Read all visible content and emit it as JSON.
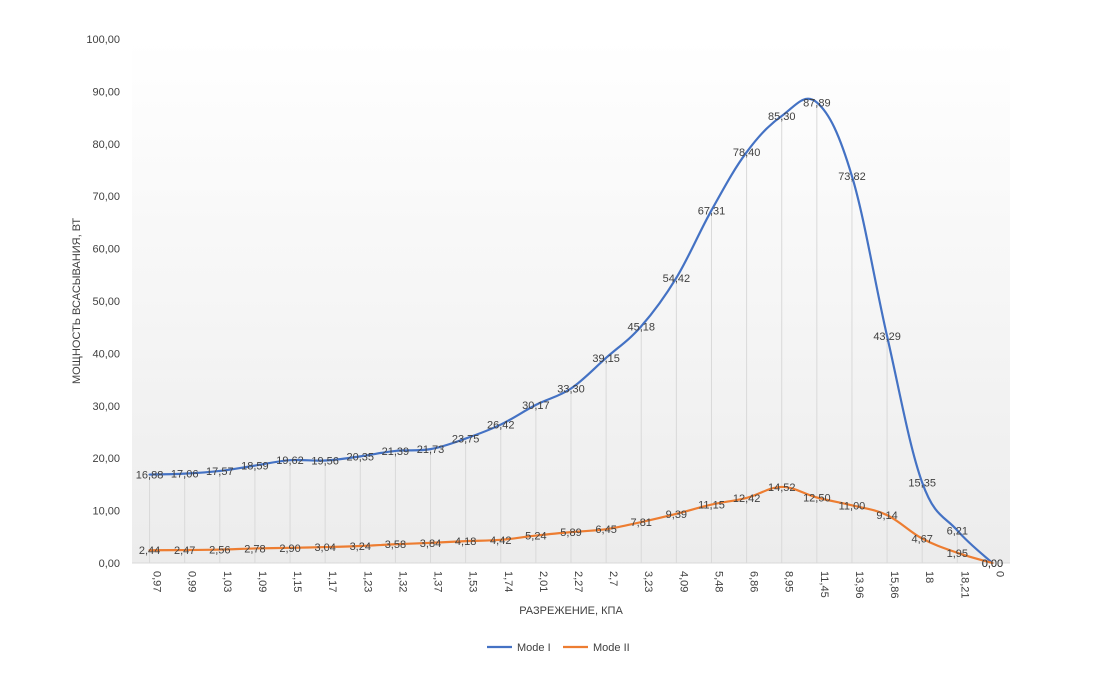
{
  "chart_data": {
    "type": "line",
    "title": "",
    "xlabel": "РАЗРЕЖЕНИЕ, КПА",
    "ylabel": "МОЩНОСТЬ ВСАСЫВАНИЯ, ВТ",
    "ylim": [
      0,
      100
    ],
    "y_ticks": [
      "0,00",
      "10,00",
      "20,00",
      "30,00",
      "40,00",
      "50,00",
      "60,00",
      "70,00",
      "80,00",
      "90,00",
      "100,00"
    ],
    "categories": [
      "0,97",
      "0,99",
      "1,03",
      "1,09",
      "1,15",
      "1,17",
      "1,23",
      "1,32",
      "1,37",
      "1,53",
      "1,74",
      "2,01",
      "2,27",
      "2,7",
      "3,23",
      "4,09",
      "5,48",
      "6,86",
      "8,95",
      "11,45",
      "13,96",
      "15,86",
      "18",
      "18,21",
      "0"
    ],
    "series": [
      {
        "name": "Mode I",
        "color": "#4472C4",
        "values": [
          16.88,
          17.06,
          17.57,
          18.59,
          19.62,
          19.56,
          20.35,
          21.39,
          21.73,
          23.75,
          26.42,
          30.17,
          33.3,
          39.15,
          45.18,
          54.42,
          67.31,
          78.4,
          85.3,
          87.89,
          73.82,
          43.29,
          15.35,
          6.21,
          0.0
        ],
        "labels": [
          "16,88",
          "17,06",
          "17,57",
          "18,59",
          "19,62",
          "19,56",
          "20,35",
          "21,39",
          "21,73",
          "23,75",
          "26,42",
          "30,17",
          "33,30",
          "39,15",
          "45,18",
          "54,42",
          "67,31",
          "78,40",
          "85,30",
          "87,89",
          "73,82",
          "43,29",
          "15,35",
          "6,21",
          "0,00"
        ]
      },
      {
        "name": "Mode II",
        "color": "#ED7D31",
        "values": [
          2.44,
          2.47,
          2.56,
          2.78,
          2.9,
          3.04,
          3.24,
          3.58,
          3.84,
          4.18,
          4.42,
          5.24,
          5.89,
          6.45,
          7.81,
          9.39,
          11.15,
          12.42,
          14.52,
          12.5,
          11.0,
          9.14,
          4.67,
          1.95,
          0.0
        ],
        "labels": [
          "2,44",
          "2,47",
          "2,56",
          "2,78",
          "2,90",
          "3,04",
          "3,24",
          "3,58",
          "3,84",
          "4,18",
          "4,42",
          "5,24",
          "5,89",
          "6,45",
          "7,81",
          "9,39",
          "11,15",
          "12,42",
          "14,52",
          "12,50",
          "11,00",
          "9,14",
          "4,67",
          "1,95",
          "0,00"
        ]
      }
    ],
    "legend_position": "bottom",
    "drop_lines": true,
    "plot_background": "white-to-light-gray gradient"
  }
}
